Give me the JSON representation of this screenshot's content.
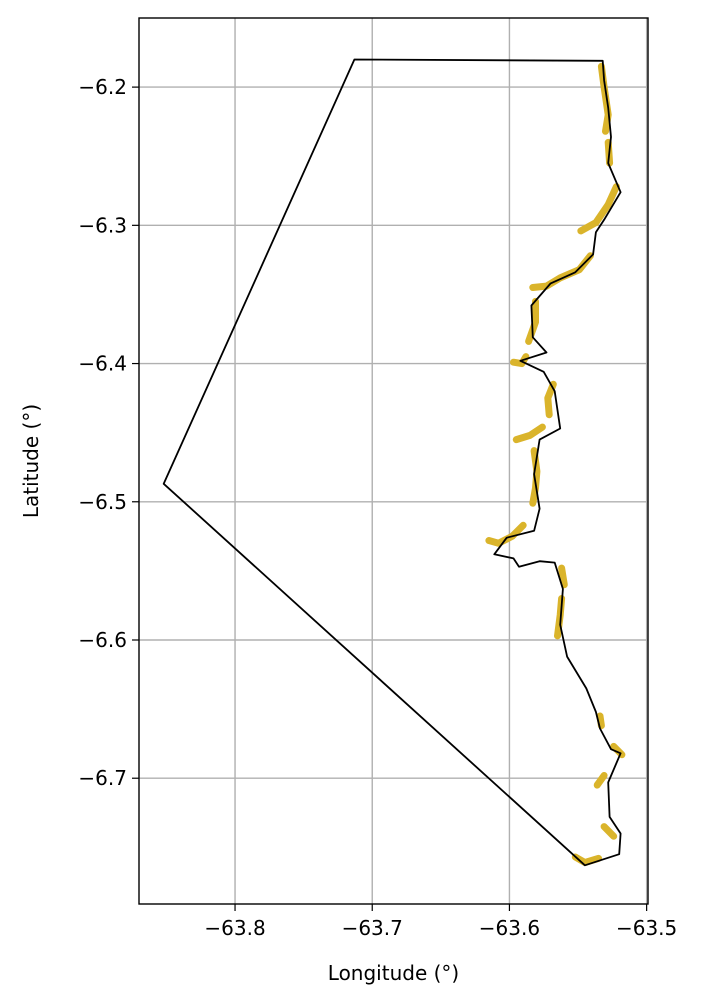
{
  "chart_data": {
    "type": "map",
    "title": "",
    "xlabel": "Longitude (°)",
    "ylabel": "Latitude (°)",
    "xlim": [
      -63.87,
      -63.499
    ],
    "ylim": [
      -6.791,
      -6.15
    ],
    "xticks": [
      -63.8,
      -63.7,
      -63.6,
      -63.5
    ],
    "xtick_labels": [
      "−63.8",
      "−63.7",
      "−63.6",
      "−63.5"
    ],
    "yticks": [
      -6.2,
      -6.3,
      -6.4,
      -6.5,
      -6.6,
      -6.7
    ],
    "ytick_labels": [
      "−6.2",
      "−6.3",
      "−6.4",
      "−6.5",
      "−6.6",
      "−6.7"
    ],
    "grid": true,
    "colors": {
      "boundary": "#000000",
      "highlight": "#dab42b",
      "grid": "#b0b0b0"
    },
    "boundary_polygon": [
      [
        -63.713,
        -6.18
      ],
      [
        -63.532,
        -6.181
      ],
      [
        -63.531,
        -6.195
      ],
      [
        -63.528,
        -6.215
      ],
      [
        -63.526,
        -6.236
      ],
      [
        -63.528,
        -6.255
      ],
      [
        -63.519,
        -6.276
      ],
      [
        -63.531,
        -6.296
      ],
      [
        -63.537,
        -6.305
      ],
      [
        -63.539,
        -6.321
      ],
      [
        -63.552,
        -6.334
      ],
      [
        -63.57,
        -6.342
      ],
      [
        -63.584,
        -6.358
      ],
      [
        -63.583,
        -6.381
      ],
      [
        -63.573,
        -6.392
      ],
      [
        -63.592,
        -6.398
      ],
      [
        -63.575,
        -6.406
      ],
      [
        -63.567,
        -6.42
      ],
      [
        -63.563,
        -6.447
      ],
      [
        -63.578,
        -6.455
      ],
      [
        -63.582,
        -6.48
      ],
      [
        -63.578,
        -6.505
      ],
      [
        -63.582,
        -6.521
      ],
      [
        -63.602,
        -6.526
      ],
      [
        -63.611,
        -6.538
      ],
      [
        -63.597,
        -6.541
      ],
      [
        -63.593,
        -6.547
      ],
      [
        -63.578,
        -6.543
      ],
      [
        -63.567,
        -6.544
      ],
      [
        -63.561,
        -6.563
      ],
      [
        -63.563,
        -6.589
      ],
      [
        -63.558,
        -6.612
      ],
      [
        -63.544,
        -6.635
      ],
      [
        -63.537,
        -6.652
      ],
      [
        -63.534,
        -6.664
      ],
      [
        -63.526,
        -6.679
      ],
      [
        -63.519,
        -6.682
      ],
      [
        -63.528,
        -6.703
      ],
      [
        -63.527,
        -6.728
      ],
      [
        -63.519,
        -6.74
      ],
      [
        -63.52,
        -6.755
      ],
      [
        -63.545,
        -6.763
      ],
      [
        -63.852,
        -6.487
      ]
    ],
    "highlight_segments": [
      [
        [
          -63.533,
          -6.185
        ],
        [
          -63.531,
          -6.2
        ],
        [
          -63.528,
          -6.22
        ],
        [
          -63.53,
          -6.232
        ]
      ],
      [
        [
          -63.528,
          -6.24
        ],
        [
          -63.527,
          -6.255
        ]
      ],
      [
        [
          -63.522,
          -6.272
        ],
        [
          -63.528,
          -6.285
        ],
        [
          -63.537,
          -6.298
        ],
        [
          -63.548,
          -6.304
        ]
      ],
      [
        [
          -63.541,
          -6.322
        ],
        [
          -63.549,
          -6.332
        ],
        [
          -63.563,
          -6.338
        ],
        [
          -63.573,
          -6.344
        ],
        [
          -63.583,
          -6.345
        ]
      ],
      [
        [
          -63.581,
          -6.355
        ],
        [
          -63.581,
          -6.37
        ],
        [
          -63.586,
          -6.384
        ]
      ],
      [
        [
          -63.588,
          -6.395
        ],
        [
          -63.591,
          -6.4
        ],
        [
          -63.597,
          -6.399
        ]
      ],
      [
        [
          -63.568,
          -6.415
        ],
        [
          -63.572,
          -6.425
        ],
        [
          -63.571,
          -6.437
        ]
      ],
      [
        [
          -63.576,
          -6.446
        ],
        [
          -63.585,
          -6.452
        ],
        [
          -63.595,
          -6.455
        ]
      ],
      [
        [
          -63.582,
          -6.463
        ],
        [
          -63.58,
          -6.478
        ],
        [
          -63.581,
          -6.49
        ],
        [
          -63.583,
          -6.501
        ]
      ],
      [
        [
          -63.59,
          -6.517
        ],
        [
          -63.598,
          -6.525
        ],
        [
          -63.608,
          -6.53
        ],
        [
          -63.615,
          -6.528
        ]
      ],
      [
        [
          -63.562,
          -6.548
        ],
        [
          -63.56,
          -6.56
        ]
      ],
      [
        [
          -63.562,
          -6.57
        ],
        [
          -63.563,
          -6.582
        ],
        [
          -63.565,
          -6.597
        ]
      ],
      [
        [
          -63.534,
          -6.655
        ],
        [
          -63.533,
          -6.662
        ]
      ],
      [
        [
          -63.524,
          -6.677
        ],
        [
          -63.518,
          -6.683
        ]
      ],
      [
        [
          -63.531,
          -6.698
        ],
        [
          -63.536,
          -6.705
        ]
      ],
      [
        [
          -63.531,
          -6.735
        ],
        [
          -63.524,
          -6.742
        ]
      ],
      [
        [
          -63.535,
          -6.758
        ],
        [
          -63.545,
          -6.761
        ],
        [
          -63.552,
          -6.757
        ]
      ]
    ]
  }
}
